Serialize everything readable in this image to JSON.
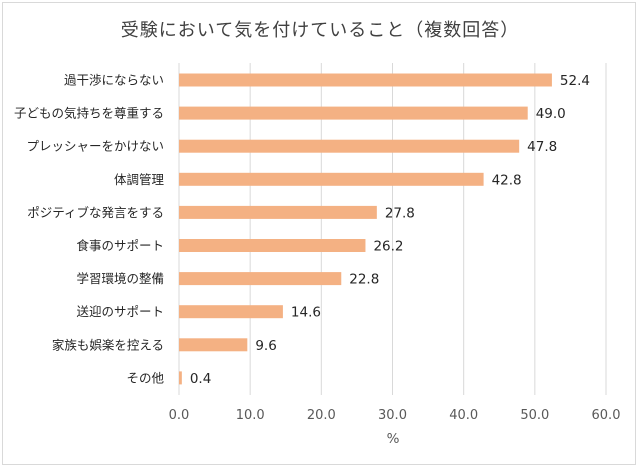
{
  "chart_data": {
    "type": "bar",
    "orientation": "horizontal",
    "title": "受験において気を付けていること（複数回答）",
    "xlabel": "%",
    "ylabel": "",
    "xlim": [
      0,
      60
    ],
    "xticks": [
      "0.0",
      "10.0",
      "20.0",
      "30.0",
      "40.0",
      "50.0",
      "60.0"
    ],
    "grid": true,
    "bar_color": "#F4B183",
    "categories": [
      "過干渉にならない",
      "子どもの気持ちを尊重する",
      "プレッシャーをかけない",
      "体調管理",
      "ポジティブな発言をする",
      "食事のサポート",
      "学習環境の整備",
      "送迎のサポート",
      "家族も娯楽を控える",
      "その他"
    ],
    "values": [
      52.4,
      49.0,
      47.8,
      42.8,
      27.8,
      26.2,
      22.8,
      14.6,
      9.6,
      0.4
    ],
    "value_labels": [
      "52.4",
      "49.0",
      "47.8",
      "42.8",
      "27.8",
      "26.2",
      "22.8",
      "14.6",
      "9.6",
      "0.4"
    ]
  }
}
